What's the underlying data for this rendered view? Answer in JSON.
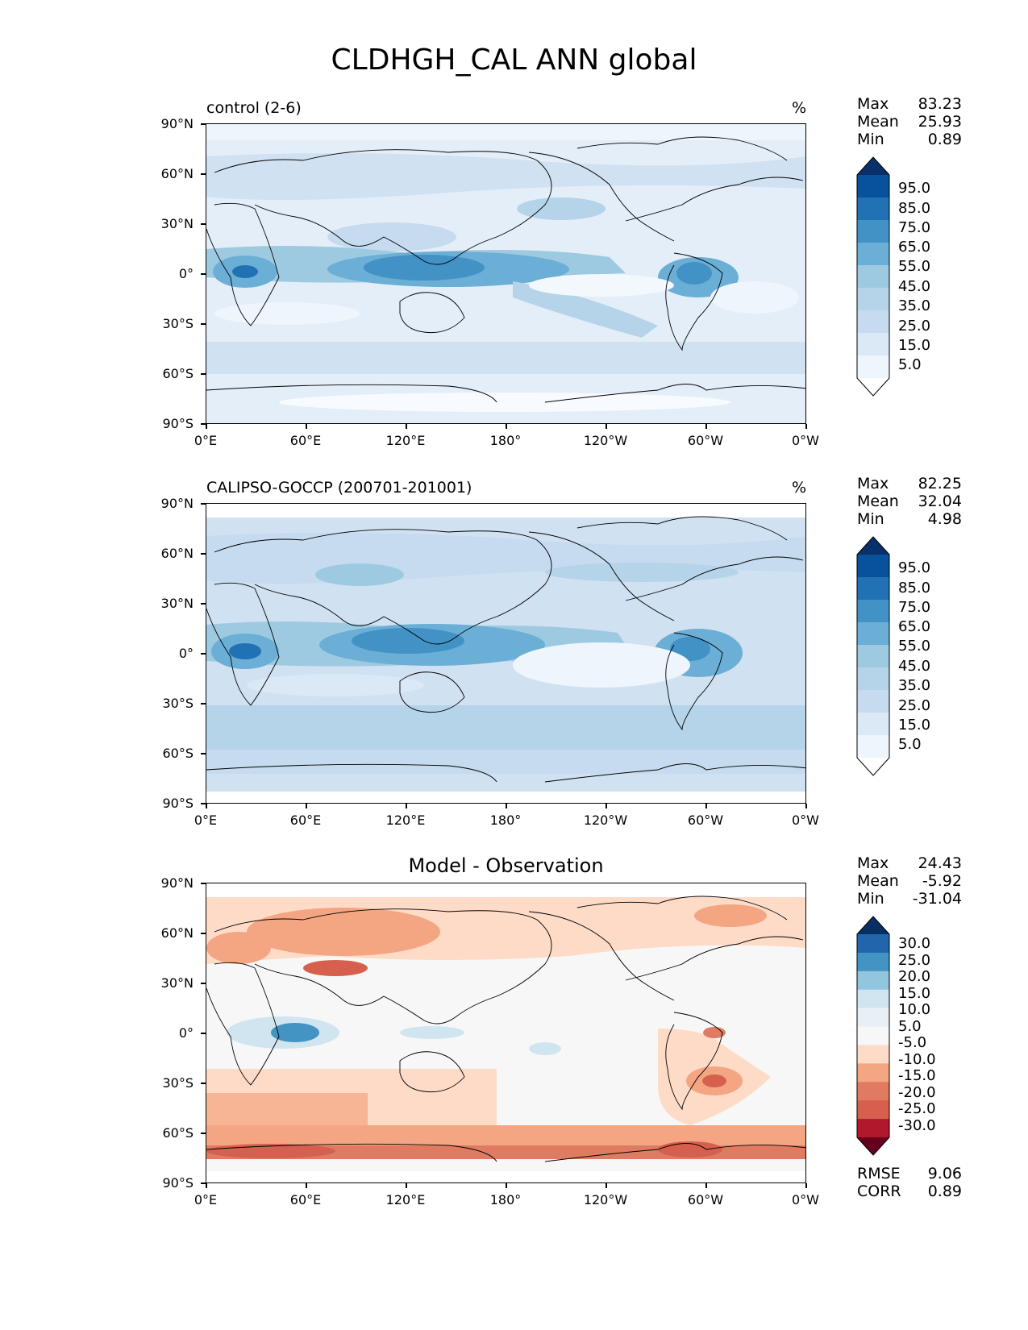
{
  "figure_title": "CLDHGH_CAL ANN global",
  "axes": {
    "lat_ticks": [
      "90°N",
      "60°N",
      "30°N",
      "0°",
      "30°S",
      "60°S",
      "90°S"
    ],
    "lon_ticks": [
      "0°E",
      "60°E",
      "120°E",
      "180°",
      "120°W",
      "60°W",
      "0°W"
    ]
  },
  "panels": [
    {
      "left_title": "control (2-6)",
      "right_title": "%",
      "center_title": "",
      "stats": [
        {
          "label": "Max",
          "value": "83.23"
        },
        {
          "label": "Mean",
          "value": "25.93"
        },
        {
          "label": "Min",
          "value": "0.89"
        }
      ],
      "colorbar_labels": [
        "95.0",
        "85.0",
        "75.0",
        "65.0",
        "55.0",
        "45.0",
        "35.0",
        "25.0",
        "15.0",
        "5.0"
      ],
      "colorbar_colors": [
        "#08306b",
        "#08519c",
        "#2171b5",
        "#4292c6",
        "#6baed6",
        "#9ecae1",
        "#b5d4e9",
        "#c6dbef",
        "#dbe9f6",
        "#eef5fc",
        "#ffffff"
      ],
      "extra_stats": []
    },
    {
      "left_title": "CALIPSO-GOCCP (200701-201001)",
      "right_title": "%",
      "center_title": "",
      "stats": [
        {
          "label": "Max",
          "value": "82.25"
        },
        {
          "label": "Mean",
          "value": "32.04"
        },
        {
          "label": "Min",
          "value": "4.98"
        }
      ],
      "colorbar_labels": [
        "95.0",
        "85.0",
        "75.0",
        "65.0",
        "55.0",
        "45.0",
        "35.0",
        "25.0",
        "15.0",
        "5.0"
      ],
      "colorbar_colors": [
        "#08306b",
        "#08519c",
        "#2171b5",
        "#4292c6",
        "#6baed6",
        "#9ecae1",
        "#b5d4e9",
        "#c6dbef",
        "#dbe9f6",
        "#eef5fc",
        "#ffffff"
      ],
      "extra_stats": []
    },
    {
      "left_title": "",
      "right_title": "",
      "center_title": "Model - Observation",
      "stats": [
        {
          "label": "Max",
          "value": "24.43"
        },
        {
          "label": "Mean",
          "value": "-5.92"
        },
        {
          "label": "Min",
          "value": "-31.04"
        }
      ],
      "colorbar_labels": [
        "30.0",
        "25.0",
        "20.0",
        "15.0",
        "10.0",
        "5.0",
        "-5.0",
        "-10.0",
        "-15.0",
        "-20.0",
        "-25.0",
        "-30.0"
      ],
      "colorbar_colors": [
        "#053061",
        "#2166ac",
        "#4393c3",
        "#92c5de",
        "#d1e5f0",
        "#e8f0f6",
        "#f7f7f7",
        "#fddbc7",
        "#f4a582",
        "#e07b62",
        "#d6604d",
        "#b2182b",
        "#67001f"
      ],
      "extra_stats": [
        {
          "label": "RMSE",
          "value": "9.06"
        },
        {
          "label": "CORR",
          "value": "0.89"
        }
      ]
    }
  ]
}
